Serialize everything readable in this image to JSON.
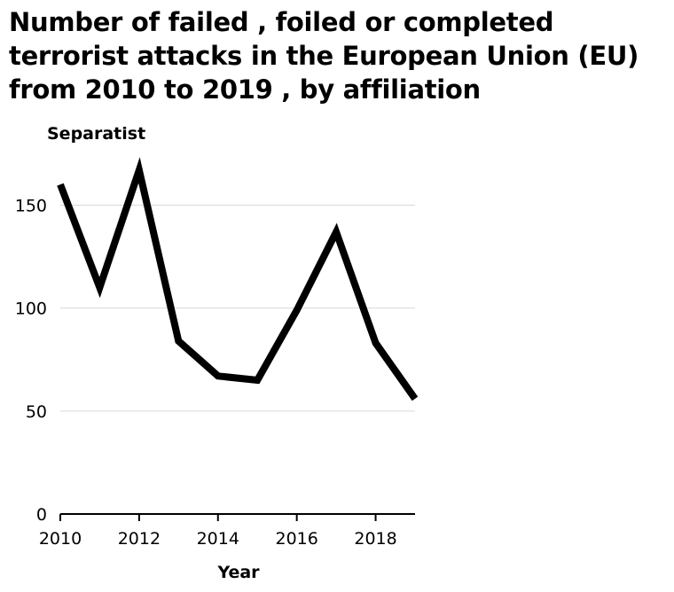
{
  "chart_data": {
    "type": "line",
    "title": "Number of failed , foiled or completed terrorist attacks in the European Union (EU) from 2010 to 2019 , by affiliation",
    "xlabel": "Year",
    "ylabel": "Separatist",
    "x": [
      2010,
      2011,
      2012,
      2013,
      2014,
      2015,
      2016,
      2017,
      2018,
      2019
    ],
    "values": [
      160,
      110,
      167,
      84,
      67,
      65,
      99,
      137,
      83,
      56
    ],
    "xlim": [
      2010,
      2019
    ],
    "ylim": [
      0,
      170
    ],
    "x_ticks": [
      2010,
      2012,
      2014,
      2016,
      2018
    ],
    "y_ticks": [
      0,
      50,
      100,
      150
    ],
    "grid": "horizontal",
    "line_color": "#000000",
    "grid_color": "#d9d9d9"
  }
}
